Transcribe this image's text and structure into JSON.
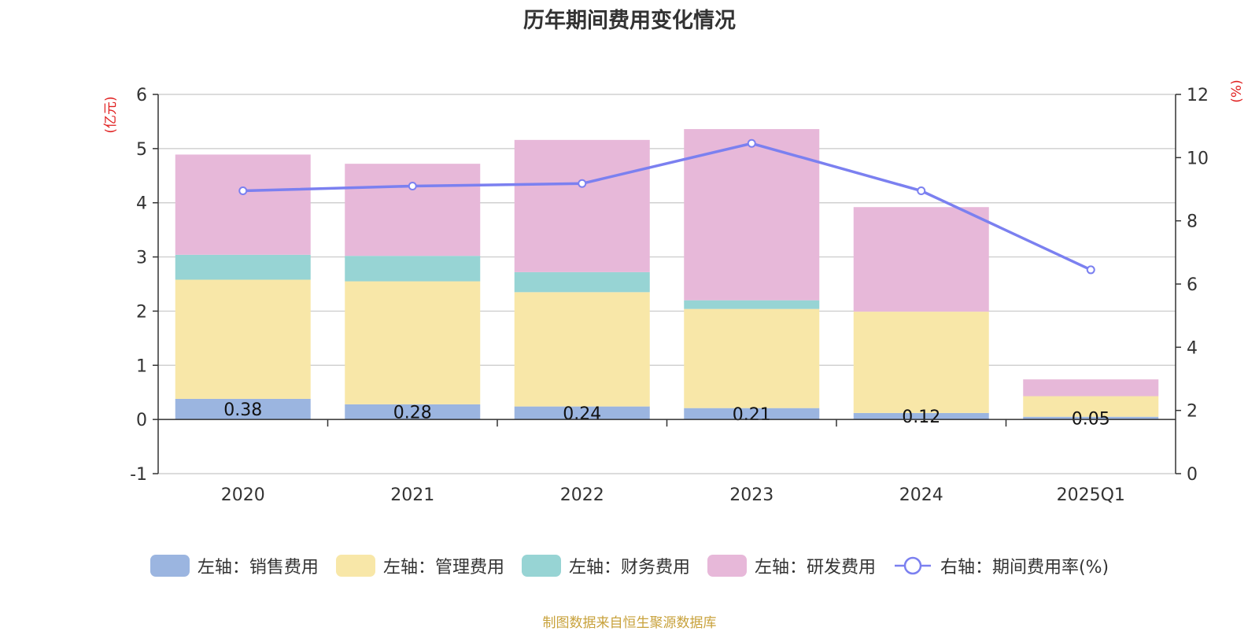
{
  "chart_data": {
    "type": "bar",
    "title": "历年期间费用变化情况",
    "stacked": true,
    "categories": [
      "2020",
      "2021",
      "2022",
      "2023",
      "2024",
      "2025Q1"
    ],
    "left_axis": {
      "label": "(亿元)",
      "min": -1,
      "max": 6,
      "ticks": [
        "-1",
        "0",
        "1",
        "2",
        "3",
        "4",
        "5",
        "6"
      ]
    },
    "right_axis": {
      "label": "(%)",
      "min": 0,
      "max": 12,
      "ticks": [
        "0",
        "2",
        "4",
        "6",
        "8",
        "10",
        "12"
      ]
    },
    "grid": true,
    "series": [
      {
        "name": "左轴：销售费用",
        "axis": "left",
        "kind": "bar",
        "color": "#9bb5e0",
        "values": [
          0.38,
          0.28,
          0.24,
          0.21,
          0.12,
          0.05
        ],
        "labels": [
          "0.38",
          "0.28",
          "0.24",
          "0.21",
          "0.12",
          "0.05"
        ]
      },
      {
        "name": "左轴：管理费用",
        "axis": "left",
        "kind": "bar",
        "color": "#f8e7a8",
        "values": [
          2.2,
          2.27,
          2.11,
          1.83,
          1.87,
          0.38
        ]
      },
      {
        "name": "左轴：财务费用",
        "axis": "left",
        "kind": "bar",
        "color": "#97d4d4",
        "values": [
          0.46,
          0.47,
          0.37,
          0.16,
          0.0,
          0.0
        ]
      },
      {
        "name": "左轴：研发费用",
        "axis": "left",
        "kind": "bar",
        "color": "#e7b8d9",
        "values": [
          1.85,
          1.7,
          2.44,
          3.16,
          1.93,
          0.31
        ]
      },
      {
        "name": "右轴：期间费用率(%)",
        "axis": "right",
        "kind": "line",
        "color": "#7b80f0",
        "values": [
          8.95,
          9.1,
          9.18,
          10.45,
          8.95,
          6.45
        ]
      }
    ],
    "legend_position": "bottom"
  },
  "footer": {
    "source": "制图数据来自恒生聚源数据库"
  }
}
